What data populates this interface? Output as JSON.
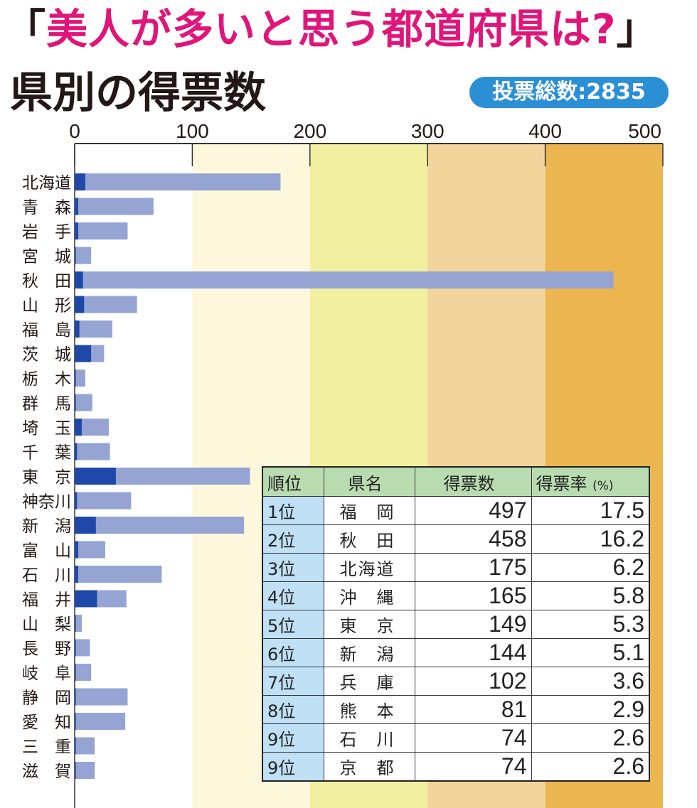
{
  "title": {
    "open_quote": "「",
    "main": "美人が多いと思う都道府県は?",
    "close_quote": "」"
  },
  "subtitle": "県別の得票数",
  "total_badge": "投票総数:2835",
  "colors": {
    "bar_light": "#95a4d2",
    "bar_dark": "#1f48a8",
    "band_100_200": "#fdf8dc",
    "band_200_300": "#f3efa0",
    "band_300_400": "#f3d49c",
    "band_400_500": "#ebb550",
    "title_pink": "#e0157a",
    "badge_blue": "#2b8fd6",
    "table_header": "#b8dcb0",
    "table_rank": "#bfe0f5"
  },
  "chart_data": {
    "type": "bar",
    "orientation": "horizontal",
    "xlim": [
      0,
      500
    ],
    "x_ticks": [
      "0",
      "100",
      "200",
      "300",
      "400",
      "500"
    ],
    "background_bands": [
      {
        "from": 100,
        "to": 200
      },
      {
        "from": 200,
        "to": 300
      },
      {
        "from": 300,
        "to": 400
      },
      {
        "from": 400,
        "to": 500
      }
    ],
    "categories": [
      "北海道",
      "青　森",
      "岩　手",
      "宮　城",
      "秋　田",
      "山　形",
      "福　島",
      "茨　城",
      "栃　木",
      "群　馬",
      "埼　玉",
      "千　葉",
      "東　京",
      "神奈川",
      "新　潟",
      "富　山",
      "石　川",
      "福　井",
      "山　梨",
      "長　野",
      "岐　阜",
      "静　岡",
      "愛　知",
      "三　重",
      "滋　賀"
    ],
    "series": [
      {
        "values": [
          175,
          67,
          45,
          14,
          458,
          53,
          32,
          25,
          9,
          15,
          29,
          30,
          149,
          48,
          144,
          26,
          74,
          44,
          6,
          13,
          14,
          45,
          43,
          17,
          17
        ]
      },
      {
        "values": [
          9,
          3,
          3,
          1,
          7,
          8,
          4,
          14,
          1,
          1,
          6,
          2,
          35,
          2,
          18,
          3,
          3,
          19,
          1,
          1,
          1,
          1,
          1,
          1,
          1
        ]
      }
    ]
  },
  "ranking": {
    "headers": [
      "順位",
      "県名",
      "得票数",
      "得票率"
    ],
    "rate_unit": "(%)",
    "rows": [
      {
        "rank": "1位",
        "pref": "福　岡",
        "votes": "497",
        "rate": "17.5"
      },
      {
        "rank": "2位",
        "pref": "秋　田",
        "votes": "458",
        "rate": "16.2"
      },
      {
        "rank": "3位",
        "pref": "北海道",
        "votes": "175",
        "rate": "6.2"
      },
      {
        "rank": "4位",
        "pref": "沖　縄",
        "votes": "165",
        "rate": "5.8"
      },
      {
        "rank": "5位",
        "pref": "東　京",
        "votes": "149",
        "rate": "5.3"
      },
      {
        "rank": "6位",
        "pref": "新　潟",
        "votes": "144",
        "rate": "5.1"
      },
      {
        "rank": "7位",
        "pref": "兵　庫",
        "votes": "102",
        "rate": "3.6"
      },
      {
        "rank": "8位",
        "pref": "熊　本",
        "votes": "81",
        "rate": "2.9"
      },
      {
        "rank": "9位",
        "pref": "石　川",
        "votes": "74",
        "rate": "2.6"
      },
      {
        "rank": "9位",
        "pref": "京　都",
        "votes": "74",
        "rate": "2.6"
      }
    ]
  }
}
